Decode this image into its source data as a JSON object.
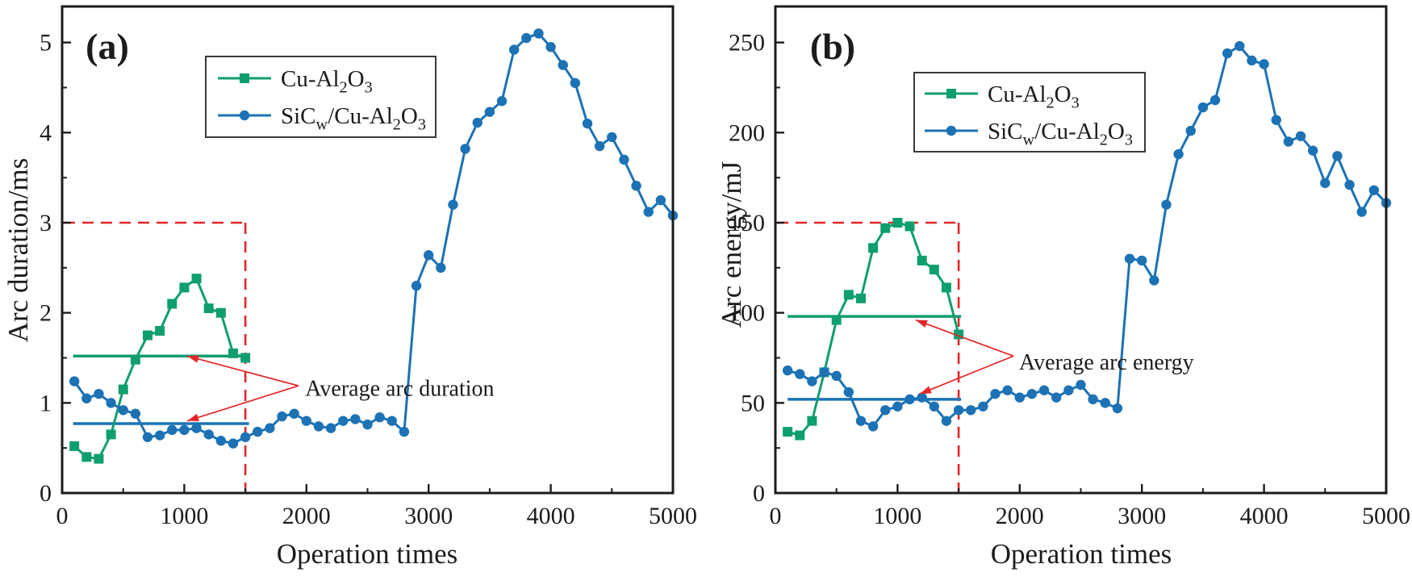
{
  "figure": {
    "background": "#ffffff",
    "colors": {
      "green": "#0f9e6f",
      "blue": "#1c72b4",
      "red": "#e52629",
      "axis": "#1c1c1c"
    }
  },
  "chart_data": [
    {
      "id": "a",
      "type": "line",
      "panel_label": "(a)",
      "xlabel": "Operation times",
      "ylabel": "Arc duration/ms",
      "xlim": [
        0,
        5000
      ],
      "ylim": [
        0,
        5.4
      ],
      "x_ticks": [
        0,
        1000,
        2000,
        3000,
        4000,
        5000
      ],
      "x_minor_ticks": [
        500,
        1500,
        2500,
        3500,
        4500
      ],
      "y_ticks": [
        0,
        1,
        2,
        3,
        4,
        5
      ],
      "y_minor_ticks": [
        0.5,
        1.5,
        2.5,
        3.5,
        4.5
      ],
      "grid": false,
      "legend_position": "upper-left-inset",
      "series": [
        {
          "name": "Cu-Al2O3",
          "color_key": "green",
          "marker": "square",
          "label_parts": [
            {
              "t": "Cu-Al"
            },
            {
              "t": "2",
              "sub": true
            },
            {
              "t": "O"
            },
            {
              "t": "3",
              "sub": true
            }
          ],
          "x": [
            100,
            200,
            300,
            400,
            500,
            600,
            700,
            800,
            900,
            1000,
            1100,
            1200,
            1300,
            1400,
            1500
          ],
          "y": [
            0.52,
            0.4,
            0.38,
            0.65,
            1.15,
            1.48,
            1.75,
            1.8,
            2.1,
            2.28,
            2.38,
            2.05,
            2.0,
            1.55,
            1.5
          ]
        },
        {
          "name": "SiCw/Cu-Al2O3",
          "color_key": "blue",
          "marker": "circle",
          "label_parts": [
            {
              "t": "SiC"
            },
            {
              "t": "w",
              "sub": true
            },
            {
              "t": "/Cu-Al"
            },
            {
              "t": "2",
              "sub": true
            },
            {
              "t": "O"
            },
            {
              "t": "3",
              "sub": true
            }
          ],
          "x": [
            100,
            200,
            300,
            400,
            500,
            600,
            700,
            800,
            900,
            1000,
            1100,
            1200,
            1300,
            1400,
            1500,
            1600,
            1700,
            1800,
            1900,
            2000,
            2100,
            2200,
            2300,
            2400,
            2500,
            2600,
            2700,
            2800,
            2900,
            3000,
            3100,
            3200,
            3300,
            3400,
            3500,
            3600,
            3700,
            3800,
            3900,
            4000,
            4100,
            4200,
            4300,
            4400,
            4500,
            4600,
            4700,
            4800,
            4900,
            5000
          ],
          "y": [
            1.24,
            1.05,
            1.1,
            1.0,
            0.92,
            0.88,
            0.62,
            0.64,
            0.7,
            0.7,
            0.72,
            0.65,
            0.58,
            0.55,
            0.62,
            0.68,
            0.72,
            0.85,
            0.88,
            0.8,
            0.74,
            0.72,
            0.8,
            0.82,
            0.76,
            0.84,
            0.8,
            0.68,
            2.3,
            2.64,
            2.5,
            3.2,
            3.82,
            4.11,
            4.23,
            4.35,
            4.92,
            5.05,
            5.1,
            4.95,
            4.75,
            4.55,
            4.1,
            3.85,
            3.95,
            3.7,
            3.41,
            3.12,
            3.25,
            3.08
          ]
        }
      ],
      "average_lines": [
        {
          "series": "Cu-Al2O3",
          "value": 1.52,
          "x_range": [
            90,
            1530
          ],
          "color_key": "green"
        },
        {
          "series": "SiCw/Cu-Al2O3",
          "value": 0.77,
          "x_range": [
            90,
            1530
          ],
          "color_key": "blue"
        }
      ],
      "dashed_box": {
        "x": 1500,
        "y": 3,
        "color_key": "red"
      },
      "annotation": {
        "text": "Average arc duration",
        "text_x": 1990,
        "text_y": 1.17,
        "arrow_origin": [
          1935,
          1.19
        ],
        "arrow_targets": [
          [
            1024,
            1.52
          ],
          [
            1024,
            0.8
          ]
        ]
      }
    },
    {
      "id": "b",
      "type": "line",
      "panel_label": "(b)",
      "xlabel": "Operation times",
      "ylabel": "Arc energy/mJ",
      "xlim": [
        0,
        5000
      ],
      "ylim": [
        0,
        270
      ],
      "x_ticks": [
        0,
        1000,
        2000,
        3000,
        4000,
        5000
      ],
      "x_minor_ticks": [
        500,
        1500,
        2500,
        3500,
        4500
      ],
      "y_ticks": [
        0,
        50,
        100,
        150,
        200,
        250
      ],
      "y_minor_ticks": [
        25,
        75,
        125,
        175,
        225
      ],
      "grid": false,
      "legend_position": "upper-left-inset",
      "series": [
        {
          "name": "Cu-Al2O3",
          "color_key": "green",
          "marker": "square",
          "label_parts": [
            {
              "t": "Cu-Al"
            },
            {
              "t": "2",
              "sub": true
            },
            {
              "t": "O"
            },
            {
              "t": "3",
              "sub": true
            }
          ],
          "x": [
            100,
            200,
            300,
            400,
            500,
            600,
            700,
            800,
            900,
            1000,
            1100,
            1200,
            1300,
            1400,
            1500
          ],
          "y": [
            34,
            32,
            40,
            67,
            96,
            110,
            108,
            136,
            147,
            150,
            148,
            129,
            124,
            114,
            88
          ]
        },
        {
          "name": "SiCw/Cu-Al2O3",
          "color_key": "blue",
          "marker": "circle",
          "label_parts": [
            {
              "t": "SiC"
            },
            {
              "t": "w",
              "sub": true
            },
            {
              "t": "/Cu-Al"
            },
            {
              "t": "2",
              "sub": true
            },
            {
              "t": "O"
            },
            {
              "t": "3",
              "sub": true
            }
          ],
          "x": [
            100,
            200,
            300,
            400,
            500,
            600,
            700,
            800,
            900,
            1000,
            1100,
            1200,
            1300,
            1400,
            1500,
            1600,
            1700,
            1800,
            1900,
            2000,
            2100,
            2200,
            2300,
            2400,
            2500,
            2600,
            2700,
            2800,
            2900,
            3000,
            3100,
            3200,
            3300,
            3400,
            3500,
            3600,
            3700,
            3800,
            3900,
            4000,
            4100,
            4200,
            4300,
            4400,
            4500,
            4600,
            4700,
            4800,
            4900,
            5000
          ],
          "y": [
            68,
            66,
            62,
            67,
            65,
            56,
            40,
            37,
            46,
            48,
            52,
            53,
            48,
            40,
            46,
            46,
            48,
            55,
            57,
            53,
            55,
            57,
            53,
            57,
            60,
            52,
            50,
            47,
            130,
            129,
            118,
            160,
            188,
            201,
            214,
            218,
            244,
            248,
            240,
            238,
            207,
            195,
            198,
            190,
            172,
            187,
            171,
            156,
            168,
            161
          ]
        }
      ],
      "average_lines": [
        {
          "series": "Cu-Al2O3",
          "value": 98,
          "x_range": [
            100,
            1520
          ],
          "color_key": "green"
        },
        {
          "series": "SiCw/Cu-Al2O3",
          "value": 52,
          "x_range": [
            100,
            1520
          ],
          "color_key": "blue"
        }
      ],
      "dashed_box": {
        "x": 1500,
        "y": 150,
        "color_key": "red"
      },
      "annotation": {
        "text": "Average arc energy",
        "text_x": 1995,
        "text_y": 73,
        "arrow_origin": [
          1949,
          76
        ],
        "arrow_targets": [
          [
            1149,
            96
          ],
          [
            1182,
            55
          ]
        ]
      }
    }
  ]
}
